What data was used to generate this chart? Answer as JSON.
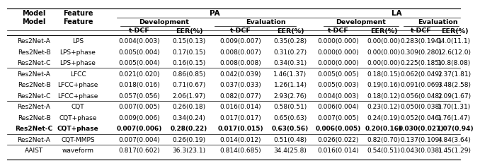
{
  "rows": [
    {
      "model": "Res2Net-A",
      "feature": "LPS",
      "bold": false,
      "data": [
        "0.004(0.003)",
        "0.15(0.13)",
        "0.009(0.007)",
        "0.35(0.28)",
        "0.000(0.000)",
        "0.00(0.00)",
        "0.283(0.194)",
        "14.0(11.1)"
      ]
    },
    {
      "model": "Res2Net-B",
      "feature": "LPS+phase",
      "bold": false,
      "data": [
        "0.005(0.004)",
        "0.17(0.15)",
        "0.008(0.007)",
        "0.31(0.27)",
        "0.000(0.000)",
        "0.00(0.00)",
        "0.309(0.280)",
        "12.6(12.0)"
      ]
    },
    {
      "model": "Res2Net-C",
      "feature": "LPS+phase",
      "bold": false,
      "data": [
        "0.005(0.004)",
        "0.16(0.15)",
        "0.008(0.008)",
        "0.34(0.31)",
        "0.000(0.000)",
        "0.00(0.00)",
        "0.225(0.185)",
        "10.8(8.08)"
      ]
    },
    {
      "model": "Res2Net-A",
      "feature": "LFCC",
      "bold": false,
      "data": [
        "0.021(0.020)",
        "0.86(0.85)",
        "0.042(0.039)",
        "1.46(1.37)",
        "0.005(0.005)",
        "0.18(0.15)",
        "0.062(0.049)",
        "2.37(1.81)"
      ]
    },
    {
      "model": "Res2Net-B",
      "feature": "LFCC+phase",
      "bold": false,
      "data": [
        "0.018(0.016)",
        "0.71(0.67)",
        "0.037(0.033)",
        "1.26(1.14)",
        "0.005(0.003)",
        "0.19(0.16)",
        "0.091(0.069)",
        "3.48(2.58)"
      ]
    },
    {
      "model": "Res2Net-C",
      "feature": "LFCC+phase",
      "bold": false,
      "data": [
        "0.057(0.056)",
        "2.06(1.97)",
        "0.082(0.077)",
        "2.93(2.76)",
        "0.004(0.003)",
        "0.18(0.12)",
        "0.056(0.048)",
        "2.09(1.67)"
      ]
    },
    {
      "model": "Res2Net-A",
      "feature": "CQT",
      "bold": false,
      "data": [
        "0.007(0.005)",
        "0.26(0.18)",
        "0.016(0.014)",
        "0.58(0.51)",
        "0.006(0.004)",
        "0.23(0.12)",
        "0.050(0.038)",
        "1.70(1.31)"
      ]
    },
    {
      "model": "Res2Net-B",
      "feature": "CQT+phase",
      "bold": false,
      "data": [
        "0.009(0.006)",
        "0.34(0.24)",
        "0.017(0.017)",
        "0.65(0.63)",
        "0.007(0.005)",
        "0.24(0.19)",
        "0.052(0.046)",
        "1.76(1.47)"
      ]
    },
    {
      "model": "Res2Net-C",
      "feature": "CQT+phase",
      "bold": true,
      "data": [
        "0.007(0.006)",
        "0.28(0.22)",
        "0.017(0.015)",
        "0.63(0.56)",
        "0.006(0.005)",
        "0.20(0.16)",
        "0.030(0.027)",
        "1.07(0.94)"
      ]
    },
    {
      "model": "Res2Net-A",
      "feature": "CQT-MMPS",
      "bold": false,
      "data": [
        "0.007(0.004)",
        "0.26(0.19)",
        "0.014(0.012)",
        "0.51(0.48)",
        "0.026(0.022)",
        "0.82(0.70)",
        "0.137(0.109)",
        "4.84(3.64)"
      ]
    },
    {
      "model": "AAIST",
      "feature": "waveform",
      "bold": false,
      "data": [
        "0.817(0.602)",
        "36.3(23.1)",
        "0.814(0.685)",
        "34.4(25.8)",
        "0.016(0.014)",
        "0.54(0.51)",
        "0.043(0.038)",
        "1.45(1.29)"
      ]
    }
  ],
  "group_separators": [
    3,
    6,
    9,
    10
  ],
  "bg_color": "#ffffff",
  "text_color": "#000000",
  "fontsize": 6.5
}
